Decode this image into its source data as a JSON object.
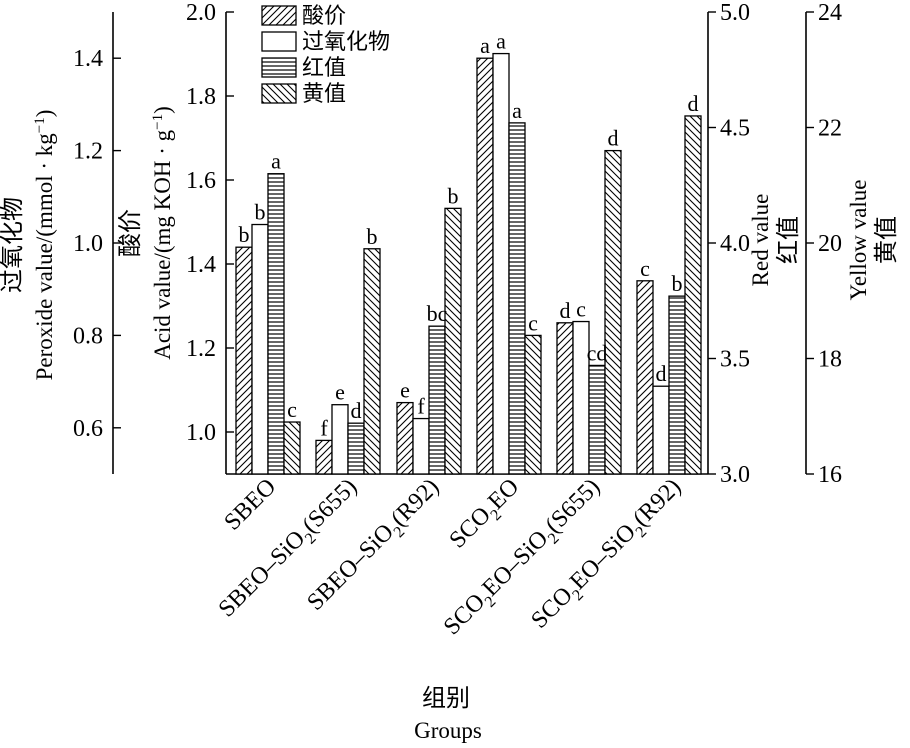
{
  "chart_data": {
    "type": "bar",
    "categories": [
      "SBEO",
      "SBEO-SiO2(S655)",
      "SBEO-SiO2(R92)",
      "SCO2EO",
      "SCO2EO-SiO2(S655)",
      "SCO2EO-SiO2(R92)"
    ],
    "category_labels": [
      {
        "base": "SBEO",
        "sub": "",
        "tail": ""
      },
      {
        "base": "SBEO–SiO",
        "sub": "2",
        "tail": "(S655)"
      },
      {
        "base": "SBEO–SiO",
        "sub": "2",
        "tail": "(R92)"
      },
      {
        "base": "SCO",
        "sub": "2",
        "tail": "EO"
      },
      {
        "base": "SCO",
        "sub": "2",
        "tail": "EO–SiO",
        "sub2": "2",
        "tail2": "(S655)"
      },
      {
        "base": "SCO",
        "sub": "2",
        "tail": "EO–SiO",
        "sub2": "2",
        "tail2": "(R92)"
      }
    ],
    "series": [
      {
        "name": "酸价",
        "axis": "acid",
        "pattern": "diag-fwd",
        "values": [
          1.44,
          0.98,
          1.07,
          1.89,
          1.26,
          1.36
        ],
        "letters": [
          "b",
          "f",
          "e",
          "a",
          "d",
          "c"
        ]
      },
      {
        "name": "过氧化物",
        "axis": "peroxide",
        "pattern": "white",
        "values": [
          1.04,
          0.65,
          0.62,
          1.41,
          0.83,
          0.69
        ],
        "letters": [
          "b",
          "e",
          "f",
          "a",
          "c",
          "d"
        ]
      },
      {
        "name": "红值",
        "axis": "red",
        "pattern": "horizontal",
        "values": [
          4.3,
          3.22,
          3.64,
          4.52,
          3.47,
          3.77
        ],
        "letters": [
          "a",
          "d",
          "bc",
          "a",
          "cd",
          "b"
        ]
      },
      {
        "name": "黄值",
        "axis": "yellow",
        "pattern": "diag-back",
        "values": [
          16.9,
          19.9,
          20.6,
          18.4,
          21.6,
          22.2
        ],
        "letters": [
          "c",
          "b",
          "b",
          "c",
          "d",
          "d"
        ]
      }
    ],
    "axes": {
      "peroxide": {
        "label_cn": "过氧化物",
        "label_en": "Peroxide value/(mmol · kg",
        "label_sup": "−1",
        "label_end": ")",
        "ylim": [
          0.5,
          1.5
        ],
        "ticks": [
          "0.6",
          "0.8",
          "1.0",
          "1.2",
          "1.4"
        ]
      },
      "acid": {
        "label_cn": "酸价",
        "label_en": "Acid value/(mg KOH · g",
        "label_sup": "−1",
        "label_end": ")",
        "ylim": [
          0.9,
          2.0
        ],
        "ticks": [
          "1.0",
          "1.2",
          "1.4",
          "1.6",
          "1.8",
          "2.0"
        ]
      },
      "red": {
        "label_cn": "红值",
        "label_en": "Red value",
        "ylim": [
          3.0,
          5.0
        ],
        "ticks": [
          "3.0",
          "3.5",
          "4.0",
          "4.5",
          "5.0"
        ]
      },
      "yellow": {
        "label_cn": "黄值",
        "label_en": "Yellow value",
        "ylim": [
          16,
          24
        ],
        "ticks": [
          "16",
          "18",
          "20",
          "22",
          "24"
        ]
      }
    },
    "xlabel_cn": "组别",
    "xlabel_en": "Groups",
    "legend_position": "top-center",
    "grid": false
  }
}
